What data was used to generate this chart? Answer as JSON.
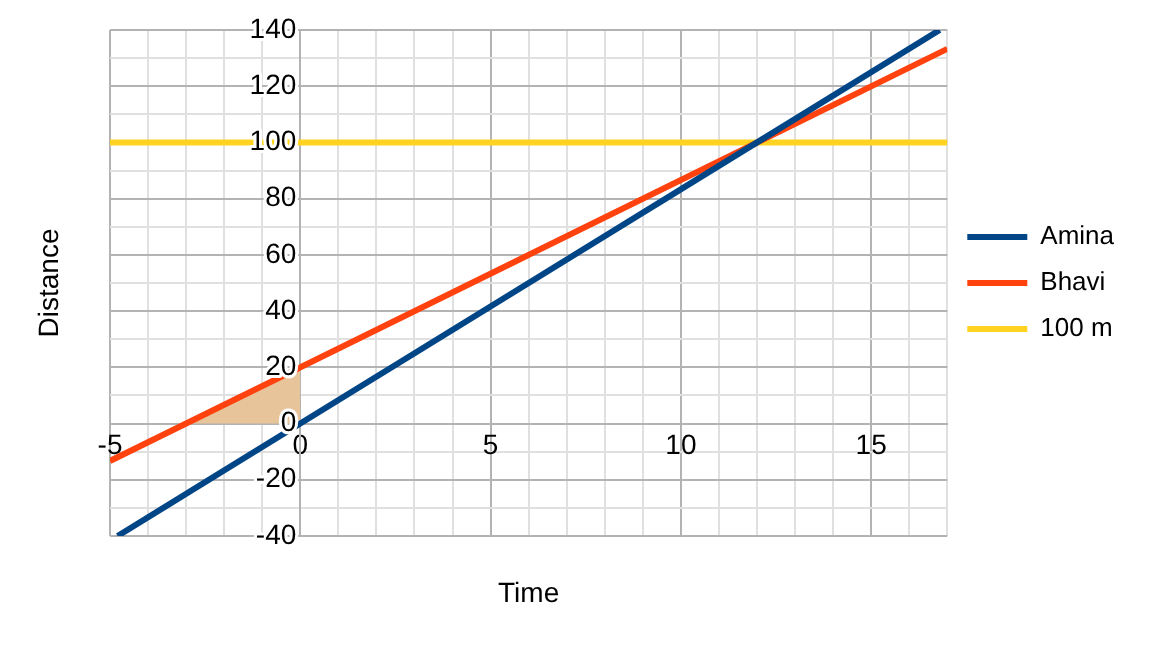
{
  "chart_data": {
    "type": "line",
    "xlabel": "Time",
    "ylabel": "Distance",
    "xlim": [
      -5,
      17
    ],
    "ylim": [
      -40,
      140
    ],
    "xticks": [
      -5,
      {
        "value": -4,
        "label": null
      },
      {
        "value": -3,
        "label": null
      },
      {
        "value": -2,
        "label": null
      },
      {
        "value": -1,
        "label": null
      },
      0,
      {
        "value": 1,
        "label": null
      },
      {
        "value": 2,
        "label": null
      },
      {
        "value": 3,
        "label": null
      },
      {
        "value": 4,
        "label": null
      },
      5,
      {
        "value": 6,
        "label": null
      },
      {
        "value": 7,
        "label": null
      },
      {
        "value": 8,
        "label": null
      },
      {
        "value": 9,
        "label": null
      },
      10,
      {
        "value": 11,
        "label": null
      },
      {
        "value": 12,
        "label": null
      },
      {
        "value": 13,
        "label": null
      },
      {
        "value": 14,
        "label": null
      },
      15,
      {
        "value": 16,
        "label": null
      },
      {
        "value": 17,
        "label": null
      }
    ],
    "yticks": [
      -40,
      {
        "value": -30,
        "label": null
      },
      -20,
      {
        "value": -10,
        "label": null
      },
      0,
      {
        "value": 10,
        "label": null
      },
      20,
      {
        "value": 30,
        "label": null
      },
      40,
      {
        "value": 50,
        "label": null
      },
      60,
      {
        "value": 70,
        "label": null
      },
      80,
      {
        "value": 90,
        "label": null
      },
      100,
      {
        "value": 110,
        "label": null
      },
      120,
      {
        "value": 130,
        "label": null
      },
      140
    ],
    "grid": true,
    "legend": "right",
    "marker": "none",
    "series": [
      {
        "type": "area",
        "color": "#e8c49a",
        "x": [
          -3,
          0
        ],
        "values": [
          0,
          20
        ]
      },
      {
        "name": "Amina",
        "color": "#004586",
        "x": [
          -4.8,
          16.8
        ],
        "values": [
          -40,
          140
        ]
      },
      {
        "name": "Bhavi",
        "color": "#ff420e",
        "x": [
          -5,
          17
        ],
        "values": [
          -13.3,
          133.3
        ]
      },
      {
        "name": "100 m",
        "color": "#ffd320",
        "x": [
          -5,
          17
        ],
        "values": [
          100,
          100
        ]
      }
    ]
  }
}
